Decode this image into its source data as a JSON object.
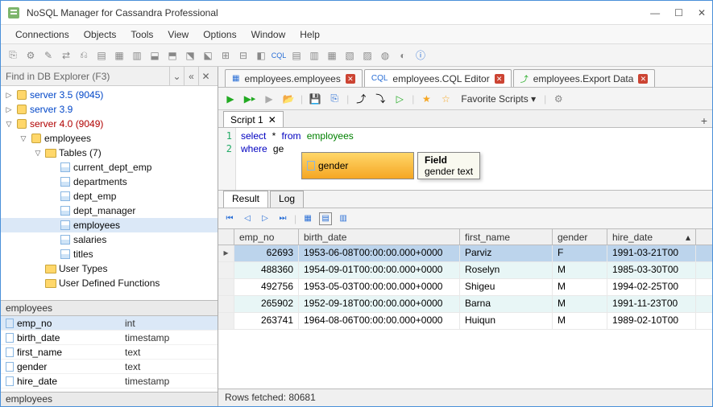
{
  "window": {
    "title": "NoSQL Manager for Cassandra Professional"
  },
  "menubar": [
    "Connections",
    "Objects",
    "Tools",
    "View",
    "Options",
    "Window",
    "Help"
  ],
  "find_placeholder": "Find in DB Explorer (F3)",
  "tree": [
    {
      "depth": 0,
      "twisty": "▷",
      "label": "server 3.5 (9045)",
      "cls": "blue",
      "icon": "db"
    },
    {
      "depth": 0,
      "twisty": "▷",
      "label": "server 3.9",
      "cls": "blue",
      "icon": "db"
    },
    {
      "depth": 0,
      "twisty": "▽",
      "label": "server 4.0 (9049)",
      "cls": "red",
      "icon": "db"
    },
    {
      "depth": 1,
      "twisty": "▽",
      "label": "employees",
      "cls": "",
      "icon": "db"
    },
    {
      "depth": 2,
      "twisty": "▽",
      "label": "Tables (7)",
      "cls": "",
      "icon": "folder"
    },
    {
      "depth": 3,
      "twisty": "",
      "label": "current_dept_emp",
      "cls": "",
      "icon": "table"
    },
    {
      "depth": 3,
      "twisty": "",
      "label": "departments",
      "cls": "",
      "icon": "table"
    },
    {
      "depth": 3,
      "twisty": "",
      "label": "dept_emp",
      "cls": "",
      "icon": "table"
    },
    {
      "depth": 3,
      "twisty": "",
      "label": "dept_manager",
      "cls": "",
      "icon": "table"
    },
    {
      "depth": 3,
      "twisty": "",
      "label": "employees",
      "cls": "",
      "icon": "table",
      "sel": true
    },
    {
      "depth": 3,
      "twisty": "",
      "label": "salaries",
      "cls": "",
      "icon": "table"
    },
    {
      "depth": 3,
      "twisty": "",
      "label": "titles",
      "cls": "",
      "icon": "table"
    },
    {
      "depth": 2,
      "twisty": "",
      "label": "User Types",
      "cls": "",
      "icon": "folder"
    },
    {
      "depth": 2,
      "twisty": "",
      "label": "User Defined Functions",
      "cls": "",
      "icon": "folder"
    }
  ],
  "schema_header": "employees",
  "schema_rows": [
    {
      "name": "emp_no",
      "type": "int",
      "sel": true
    },
    {
      "name": "birth_date",
      "type": "timestamp"
    },
    {
      "name": "first_name",
      "type": "text"
    },
    {
      "name": "gender",
      "type": "text"
    },
    {
      "name": "hire_date",
      "type": "timestamp"
    }
  ],
  "schema_footer": "employees",
  "tabs": [
    {
      "label": "employees.employees",
      "icon": "table",
      "active": false
    },
    {
      "label": "employees.CQL Editor",
      "icon": "cql",
      "active": true
    },
    {
      "label": "employees.Export Data",
      "icon": "export",
      "active": false
    }
  ],
  "favorite_label": "Favorite Scripts",
  "script_tab": "Script 1",
  "code": {
    "line1_kw1": "select",
    "line1_kw2": "from",
    "line1_star": "*",
    "line1_ident": "employees",
    "line2_kw": "where",
    "line2_partial": "ge"
  },
  "autocomplete": {
    "item": "gender",
    "tip_title": "Field",
    "tip_detail": "gender text"
  },
  "result_tabs": [
    "Result",
    "Log"
  ],
  "grid": {
    "columns": [
      "emp_no",
      "birth_date",
      "first_name",
      "gender",
      "hire_date"
    ],
    "rows": [
      {
        "emp_no": "62693",
        "birth_date": "1953-06-08T00:00:00.000+0000",
        "first_name": "Parviz",
        "gender": "F",
        "hire_date": "1991-03-21T00",
        "sel": true
      },
      {
        "emp_no": "488360",
        "birth_date": "1954-09-01T00:00:00.000+0000",
        "first_name": "Roselyn",
        "gender": "M",
        "hire_date": "1985-03-30T00",
        "alt": true
      },
      {
        "emp_no": "492756",
        "birth_date": "1953-05-03T00:00:00.000+0000",
        "first_name": "Shigeu",
        "gender": "M",
        "hire_date": "1994-02-25T00"
      },
      {
        "emp_no": "265902",
        "birth_date": "1952-09-18T00:00:00.000+0000",
        "first_name": "Barna",
        "gender": "M",
        "hire_date": "1991-11-23T00",
        "alt": true
      },
      {
        "emp_no": "263741",
        "birth_date": "1964-08-06T00:00:00.000+0000",
        "first_name": "Huiqun",
        "gender": "M",
        "hire_date": "1989-02-10T00"
      }
    ]
  },
  "status": "Rows fetched: 80681"
}
